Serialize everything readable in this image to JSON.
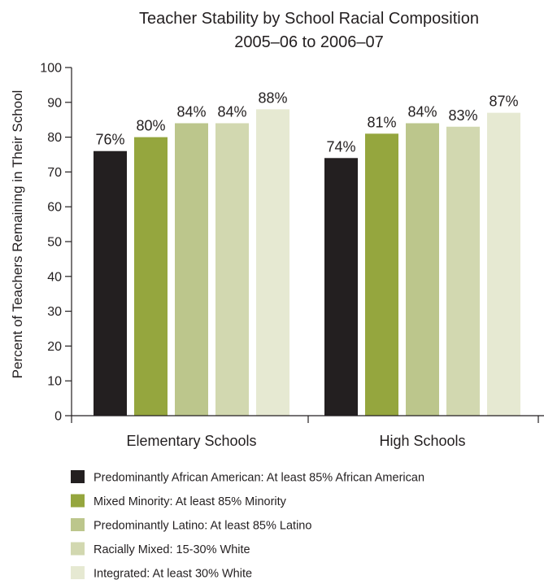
{
  "chart_data": {
    "type": "bar",
    "title": [
      "Teacher Stability by School Racial Composition",
      "2005–06 to 2006–07"
    ],
    "ylabel": "Percent of Teachers Remaining in Their School",
    "xlabel": "",
    "ylim": [
      0,
      100
    ],
    "yticks": [
      0,
      10,
      20,
      30,
      40,
      50,
      60,
      70,
      80,
      90,
      100
    ],
    "categories": [
      "Elementary Schools",
      "High Schools"
    ],
    "series": [
      {
        "name": "Predominantly African American: At least 85% African American",
        "color": "#231f20",
        "values": [
          76,
          74
        ],
        "labels": [
          "76%",
          "74%"
        ]
      },
      {
        "name": "Mixed Minority: At least 85% Minority",
        "color": "#95a63e",
        "values": [
          80,
          81
        ],
        "labels": [
          "80%",
          "81%"
        ]
      },
      {
        "name": "Predominantly Latino: At least 85% Latino",
        "color": "#bcc68c",
        "values": [
          84,
          84
        ],
        "labels": [
          "84%",
          "84%"
        ]
      },
      {
        "name": "Racially Mixed: 15-30% White",
        "color": "#d2d8b0",
        "values": [
          84,
          83
        ],
        "labels": [
          "84%",
          "83%"
        ]
      },
      {
        "name": "Integrated: At least 30% White",
        "color": "#e6e9d2",
        "values": [
          88,
          87
        ],
        "labels": [
          "88%",
          "87%"
        ]
      }
    ],
    "legend_position": "bottom",
    "grid": false
  }
}
